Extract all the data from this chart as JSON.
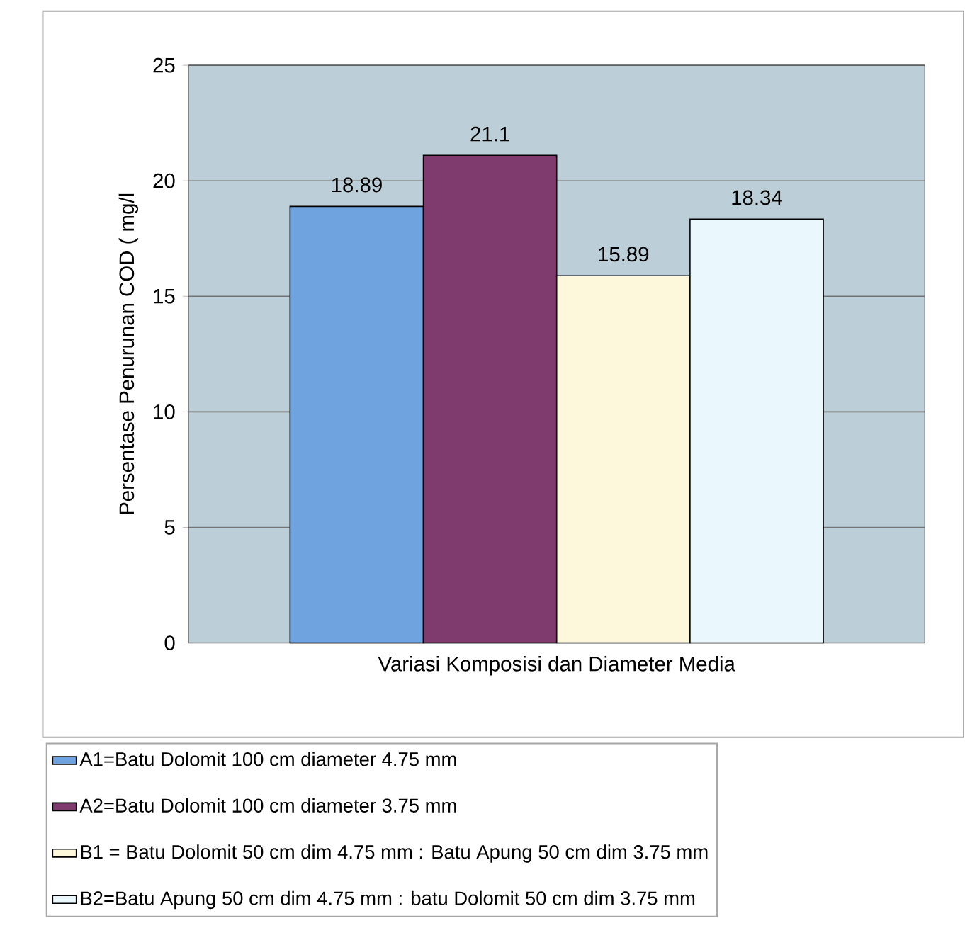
{
  "chart_data": {
    "type": "bar",
    "xlabel": "Variasi Komposisi dan Diameter Media",
    "ylabel": "Persentase Penurunan COD ( mg/l",
    "categories": [
      null
    ],
    "series": [
      {
        "name": "A1=Batu Dolomit 100 cm diameter 4.75 mm",
        "color": "#6fa3e0",
        "values": [
          18.89
        ]
      },
      {
        "name": "A2=Batu Dolomit 100 cm diameter 3.75 mm",
        "color": "#7f3a6e",
        "values": [
          21.1
        ]
      },
      {
        "name": "B1 = Batu Dolomit 50 cm dim 4.75 mm : Batu Apung 50 cm dim 3.75 mm",
        "color": "#fdf8dc",
        "values": [
          15.89
        ]
      },
      {
        "name": "B2=Batu Apung 50 cm dim 4.75 mm : batu Dolomit 50 cm dim 3.75 mm",
        "color": "#eaf8fd",
        "values": [
          18.34
        ]
      }
    ],
    "data_labels": true,
    "ylim": [
      0,
      25
    ],
    "yticks": [
      0,
      5,
      10,
      15,
      20,
      25
    ],
    "grid": "y",
    "legend": "bottom"
  }
}
